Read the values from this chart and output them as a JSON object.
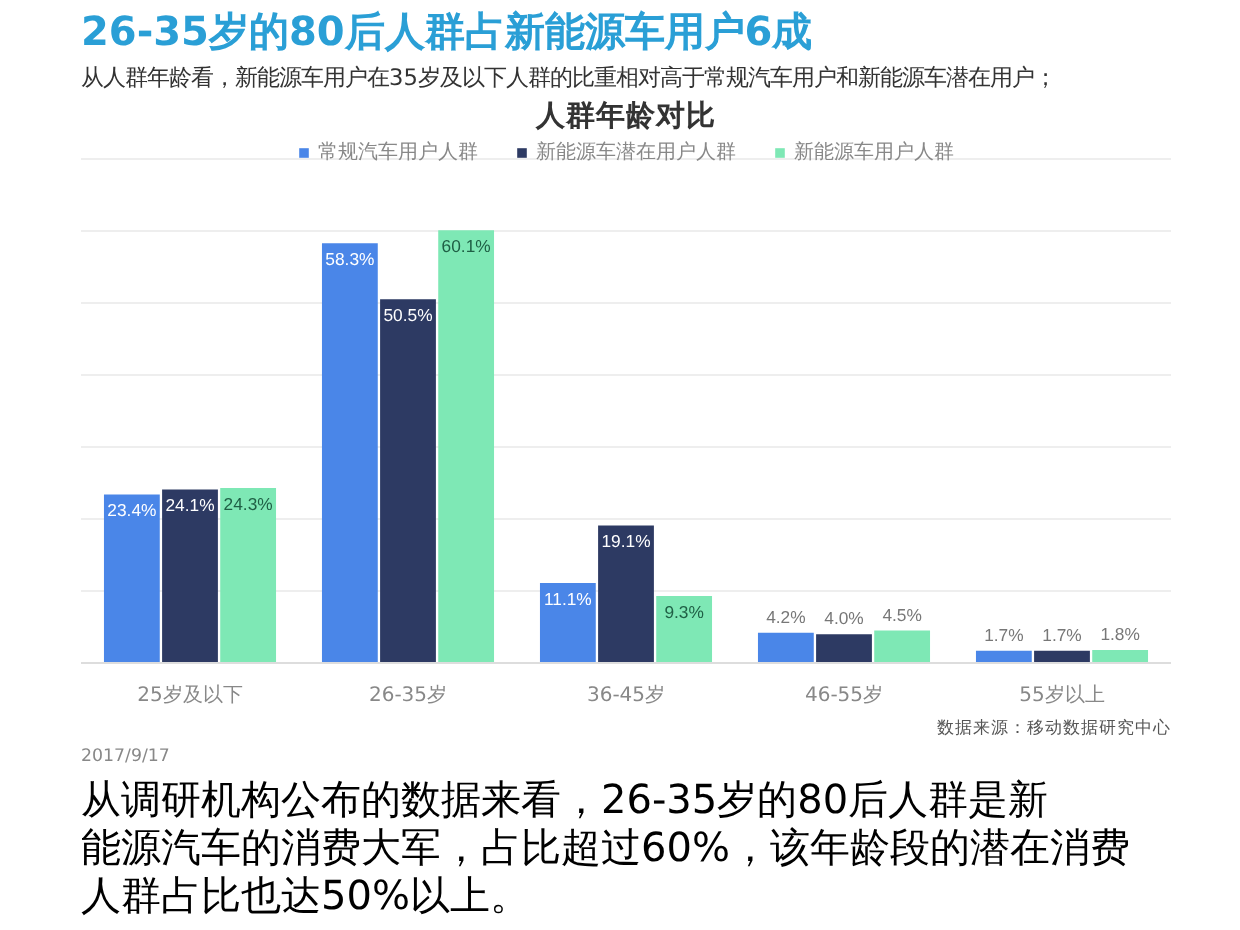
{
  "chart_data": {
    "type": "bar",
    "title": "26-35岁的80后人群占新能源车用户6成",
    "subtitle": "从人群年龄看，新能源车用户在35岁及以下人群的比重相对高于常规汽车用户和新能源车潜在用户；",
    "annotations": [
      "人群年龄对比",
      "2017/9/17",
      "数据来源：移动数据研究中心",
      "从调研机构公布的数据来看，26-35岁的80后人群是新能源汽车的消费大军，占比超过60%，该年龄段的潜在消费人群占比也达50%以上。"
    ],
    "categories": [
      "25岁及以下",
      "26-35岁",
      "36-45岁",
      "46-55岁",
      "55岁以上"
    ],
    "series": [
      {
        "name": "常规汽车用户人群",
        "color": "#4a86e8",
        "values": [
          23.4,
          58.3,
          11.1,
          4.2,
          1.7
        ],
        "value_labels": [
          "23.4%",
          "58.3%",
          "11.1%",
          "4.2%",
          "1.7%"
        ]
      },
      {
        "name": "新能源车潜在用户人群",
        "color": "#2d3a63",
        "values": [
          24.1,
          50.5,
          19.1,
          4.0,
          1.7
        ],
        "value_labels": [
          "24.1%",
          "50.5%",
          "19.1%",
          "4.0%",
          "1.7%"
        ]
      },
      {
        "name": "新能源车用户人群",
        "color": "#7ee8b5",
        "values": [
          24.3,
          60.1,
          9.3,
          4.5,
          1.8
        ],
        "value_labels": [
          "24.3%",
          "60.1%",
          "9.3%",
          "4.5%",
          "1.8%"
        ]
      }
    ],
    "grid": "y",
    "legend": "top",
    "tick_labels": "x"
  }
}
